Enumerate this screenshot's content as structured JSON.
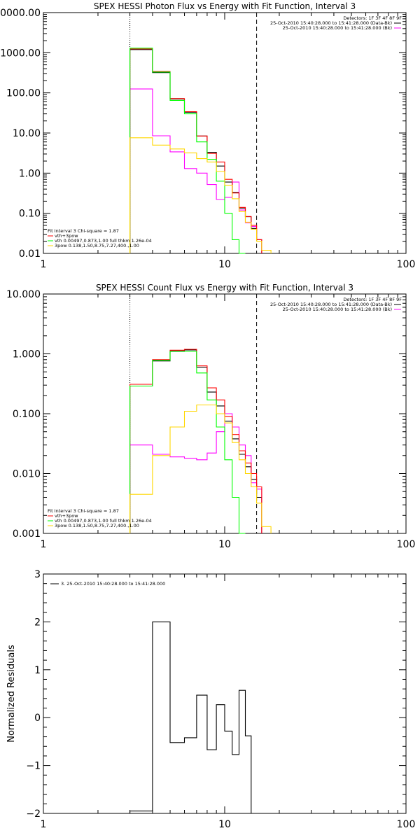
{
  "chart_data": [
    {
      "type": "line",
      "title": "SPEX HESSI Photon Flux vs Energy with Fit Function, Interval 3",
      "xscale": "log",
      "yscale": "log",
      "xlim": [
        1,
        100
      ],
      "ylim": [
        0.01,
        10000
      ],
      "xticks": [
        {
          "v": 1,
          "label": "1"
        },
        {
          "v": 10,
          "label": "10"
        },
        {
          "v": 100,
          "label": "100"
        }
      ],
      "yticks": [
        {
          "v": 0.01,
          "label": "0.01"
        },
        {
          "v": 0.1,
          "label": "0.10"
        },
        {
          "v": 1,
          "label": "1.00"
        },
        {
          "v": 10,
          "label": "10.00"
        },
        {
          "v": 100,
          "label": "100.00"
        },
        {
          "v": 1000,
          "label": "1000.00"
        },
        {
          "v": 10000,
          "label": "10000.00"
        }
      ],
      "vlines": [
        {
          "x": 3,
          "style": "dotted"
        },
        {
          "x": 15,
          "style": "dashed"
        }
      ],
      "info": [
        "Detectors: 1F 3F 4F 8F 9F",
        "25-Oct-2010 15:40:28.000 to 15:41:28.000 (Data-Bk)",
        "25-Oct-2010 15:40:28.000 to 15:41:28.000 (Bk)"
      ],
      "legend": [
        "Fit Interval 3   Chi-square = 1.87",
        "vth+3pow",
        "vth 0.00497,0.873,1.00   full thkm 1.26e-04",
        "3pow 0.138,1.50,8.75,7.27,400.,1.00"
      ],
      "colors": {
        "data": "#000000",
        "bk": "#ff00ff",
        "total": "#ff0000",
        "vth": "#00ff00",
        "pow": "#ffd700"
      },
      "edges": [
        3,
        4,
        5,
        6,
        7,
        8,
        9,
        10,
        11,
        12,
        13,
        14,
        15,
        16,
        18
      ],
      "series": [
        {
          "role": "data",
          "values": [
            1200,
            320,
            70,
            33,
            8.4,
            3.3,
            1.5,
            0.6,
            0.33,
            0.135,
            0.082,
            0.042,
            0.022,
            null
          ]
        },
        {
          "role": "bk",
          "values": [
            125,
            8.5,
            3.4,
            1.3,
            1.0,
            0.52,
            0.22,
            0.25,
            0.6,
            0.12,
            0.058,
            0.047,
            0.022,
            null
          ]
        },
        {
          "role": "total",
          "values": [
            1250,
            340,
            72,
            34,
            8.4,
            3.1,
            1.9,
            0.7,
            0.32,
            0.14,
            0.083,
            0.05,
            0.022,
            null
          ]
        },
        {
          "role": "vth",
          "values": [
            1300,
            330,
            65,
            30,
            6.0,
            2.2,
            0.63,
            0.1,
            0.022,
            0.005,
            null,
            null,
            null,
            null
          ]
        },
        {
          "role": "pow",
          "values": [
            7.6,
            5.0,
            4.0,
            3.2,
            2.3,
            1.9,
            1.1,
            0.5,
            0.23,
            0.11,
            0.06,
            0.04,
            0.02,
            0.012
          ]
        }
      ]
    },
    {
      "type": "line",
      "title": "SPEX HESSI Count Flux vs Energy with Fit Function, Interval 3",
      "xscale": "log",
      "yscale": "log",
      "xlim": [
        1,
        100
      ],
      "ylim": [
        0.001,
        10
      ],
      "xticks": [
        {
          "v": 1,
          "label": "1"
        },
        {
          "v": 10,
          "label": "10"
        },
        {
          "v": 100,
          "label": "100"
        }
      ],
      "yticks": [
        {
          "v": 0.001,
          "label": "0.001"
        },
        {
          "v": 0.01,
          "label": "0.010"
        },
        {
          "v": 0.1,
          "label": "0.100"
        },
        {
          "v": 1,
          "label": "1.000"
        },
        {
          "v": 10,
          "label": "10.000"
        }
      ],
      "vlines": [
        {
          "x": 3,
          "style": "dotted"
        },
        {
          "x": 15,
          "style": "dashed"
        }
      ],
      "info": [
        "Detectors: 1F 3F 4F 8F 9F",
        "25-Oct-2010 15:40:28.000 to 15:41:28.000 (Data-Bk)",
        "25-Oct-2010 15:40:28.000 to 15:41:28.000 (Bk)"
      ],
      "legend": [
        "Fit Interval 3   Chi-square = 1.87",
        "vth+3pow",
        "vth 0.00497,0.873,1.00   full thkm 1.26e-04",
        "3pow 0.138,1.50,8.75,7.27,400.,1.00"
      ],
      "colors": {
        "data": "#000000",
        "bk": "#ff00ff",
        "total": "#ff0000",
        "vth": "#00ff00",
        "pow": "#ffd700"
      },
      "edges": [
        3,
        4,
        5,
        6,
        7,
        8,
        9,
        10,
        11,
        12,
        13,
        14,
        15,
        16,
        18
      ],
      "series": [
        {
          "role": "data",
          "values": [
            0.29,
            0.76,
            1.12,
            1.16,
            0.6,
            0.23,
            0.135,
            0.075,
            0.038,
            0.021,
            0.013,
            0.008,
            0.004,
            null
          ]
        },
        {
          "role": "bk",
          "values": [
            0.03,
            0.021,
            0.019,
            0.018,
            0.017,
            0.022,
            0.05,
            0.1,
            0.06,
            0.03,
            0.02,
            0.007,
            0.0055,
            null
          ]
        },
        {
          "role": "total",
          "values": [
            0.31,
            0.8,
            1.15,
            1.19,
            0.63,
            0.27,
            0.17,
            0.09,
            0.045,
            0.024,
            0.015,
            0.01,
            0.006,
            null
          ]
        },
        {
          "role": "vth",
          "values": [
            0.29,
            0.78,
            1.1,
            1.1,
            0.48,
            0.17,
            0.06,
            0.017,
            0.004,
            0.001,
            null,
            null,
            null,
            null
          ]
        },
        {
          "role": "pow",
          "values": [
            0.0045,
            0.02,
            0.06,
            0.11,
            0.14,
            0.14,
            0.1,
            0.07,
            0.033,
            0.017,
            0.01,
            0.006,
            0.0032,
            0.0013
          ]
        }
      ]
    },
    {
      "type": "line",
      "ylabel": "Normalized Residuals",
      "xscale": "log",
      "xlim": [
        1,
        100
      ],
      "ylim": [
        -2,
        3
      ],
      "xticks": [
        {
          "v": 1,
          "label": "1"
        },
        {
          "v": 10,
          "label": "10"
        },
        {
          "v": 100,
          "label": "100"
        }
      ],
      "yticks": [
        {
          "v": -2,
          "label": "−2"
        },
        {
          "v": -1,
          "label": "−1"
        },
        {
          "v": 0,
          "label": "0"
        },
        {
          "v": 1,
          "label": "1"
        },
        {
          "v": 2,
          "label": "2"
        },
        {
          "v": 3,
          "label": "3"
        }
      ],
      "legend": [
        "3. 25-Oct-2010 15:40:28.000 to 15:41:28.000"
      ],
      "color": "#000000",
      "edges": [
        3,
        4,
        5,
        6,
        7,
        8,
        9,
        10,
        11,
        12,
        13,
        14,
        15
      ],
      "values": [
        -1.95,
        2.0,
        -0.52,
        -0.42,
        0.47,
        -0.67,
        0.27,
        -0.28,
        -0.77,
        0.57,
        -0.38,
        -2.0
      ]
    }
  ]
}
